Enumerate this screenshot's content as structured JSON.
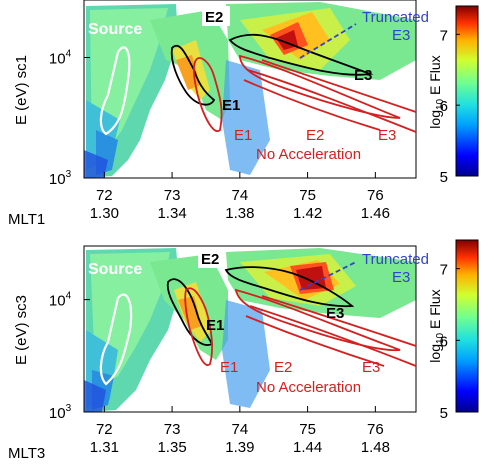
{
  "colors": {
    "source_contour": "#ffffff",
    "observed_contour": "#000000",
    "model_contour": "#d42020",
    "truncated_label": "#3344cc",
    "label_bg": "#ffffff"
  },
  "chart_data": [
    {
      "type": "heatmap",
      "panel": "sc1",
      "ylabel": "E (eV)  sc1",
      "xaxis_title": "MLT1",
      "x_ticks": [
        "72",
        "73",
        "74",
        "75",
        "76"
      ],
      "x_ticks_mlt": [
        "1.30",
        "1.34",
        "1.38",
        "1.42",
        "1.46"
      ],
      "y_scale": "log",
      "y_ticks": [
        "10",
        "10",
        "10"
      ],
      "y_tick_exponents": [
        "3",
        "4",
        ""
      ],
      "ylim": [
        1000,
        30000
      ],
      "xlim": [
        71.7,
        76.6
      ],
      "annotations": {
        "source": "Source",
        "observed_energies": [
          "E2",
          "E1",
          "E3"
        ],
        "model_energies": [
          "E1",
          "E2",
          "E3"
        ],
        "no_accel": "No Acceleration",
        "truncated_line1": "Truncated",
        "truncated_line2": "E3"
      },
      "colorbar": {
        "label_prefix": "log",
        "label_sub": "10",
        "label_suffix": " E Flux",
        "ticks": [
          "5",
          "6",
          "7"
        ],
        "range": [
          5,
          7.4
        ]
      }
    },
    {
      "type": "heatmap",
      "panel": "sc3",
      "ylabel": "E (eV)  sc3",
      "xaxis_title": "MLT3",
      "x_ticks": [
        "72",
        "73",
        "74",
        "75",
        "76"
      ],
      "x_ticks_mlt": [
        "1.31",
        "1.35",
        "1.39",
        "1.44",
        "1.48"
      ],
      "y_scale": "log",
      "y_ticks": [
        "10",
        "10",
        "10"
      ],
      "y_tick_exponents": [
        "3",
        "4",
        ""
      ],
      "ylim": [
        1000,
        30000
      ],
      "xlim": [
        71.7,
        76.6
      ],
      "annotations": {
        "source": "Source",
        "observed_energies": [
          "E2",
          "E1",
          "E3"
        ],
        "model_energies": [
          "E1",
          "E2",
          "E3"
        ],
        "no_accel": "No Acceleration",
        "truncated_line1": "Truncated",
        "truncated_line2": "E3"
      },
      "colorbar": {
        "label_prefix": "log",
        "label_sub": "10",
        "label_suffix": " E Flux",
        "ticks": [
          "5",
          "6",
          "7"
        ],
        "range": [
          5,
          7.4
        ]
      }
    }
  ]
}
